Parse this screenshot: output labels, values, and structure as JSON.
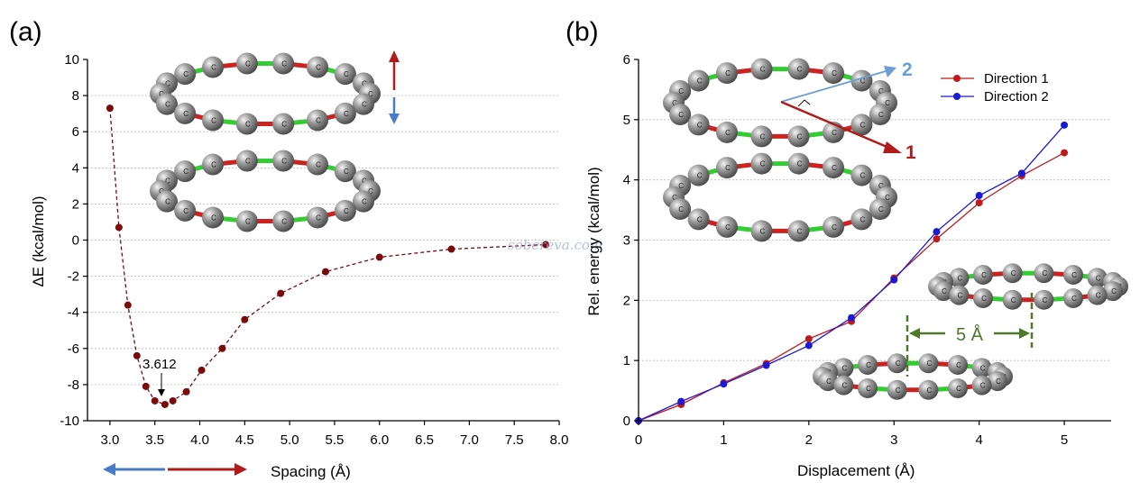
{
  "figure": {
    "watermark": "sobereva.com",
    "scale_label": "5 Å",
    "arrow_label_1": "1",
    "arrow_label_2": "2",
    "atom_label": "C"
  },
  "colors": {
    "panel_a_series": "#7b0a0a",
    "direction_1": "#c0191c",
    "direction_2": "#1a1ad6",
    "arrow_red": "#b01c1c",
    "arrow_blue": "#4a7bc8",
    "arrow_light_blue": "#6a9fd4",
    "scale_green": "#4d7a2a",
    "bond_green": "#33cc33",
    "bond_red": "#cc2222",
    "atom_gray": "#8a8a8a"
  },
  "chart_data": [
    {
      "panel": "(a)",
      "type": "line",
      "xlabel": "Spacing (Å)",
      "ylabel": "ΔE (kcal/mol)",
      "xlim": [
        2.75,
        8.0
      ],
      "ylim": [
        -10,
        10
      ],
      "xticks": [
        3.0,
        3.5,
        4.0,
        4.5,
        5.0,
        5.5,
        6.0,
        6.5,
        7.0,
        7.5,
        8.0
      ],
      "xtick_labels": [
        "3.0",
        "3.5",
        "4.0",
        "4.5",
        "5.0",
        "5.5",
        "6.0",
        "6.5",
        "7.0",
        "7.5",
        "8.0"
      ],
      "yticks": [
        -10,
        -8,
        -6,
        -4,
        -2,
        0,
        2,
        4,
        6,
        8,
        10
      ],
      "ytick_labels": [
        "-10",
        "-8",
        "-6",
        "-4",
        "-2",
        "0",
        "2",
        "4",
        "6",
        "8",
        "10"
      ],
      "grid": "horizontal dotted",
      "line_style": "dashed",
      "annotation": "3.612",
      "annotation_x": 3.612,
      "series": [
        {
          "x": [
            3.0,
            3.1,
            3.2,
            3.3,
            3.4,
            3.5,
            3.612,
            3.7,
            3.85,
            4.02,
            4.25,
            4.5,
            4.9,
            5.4,
            6.0,
            6.8,
            7.85
          ],
          "y": [
            7.3,
            0.7,
            -3.6,
            -6.4,
            -8.1,
            -8.9,
            -9.1,
            -8.9,
            -8.4,
            -7.2,
            -6.0,
            -4.4,
            -2.95,
            -1.75,
            -0.95,
            -0.5,
            -0.25
          ]
        }
      ]
    },
    {
      "panel": "(b)",
      "type": "line",
      "xlabel": "Displacement (Å)",
      "ylabel": "Rel. energy (kcal/mol)",
      "xlim": [
        0,
        5.55
      ],
      "ylim": [
        0,
        6
      ],
      "xticks": [
        0,
        1,
        2,
        3,
        4,
        5
      ],
      "xtick_labels": [
        "0",
        "1",
        "2",
        "3",
        "4",
        "5"
      ],
      "yticks": [
        0,
        1,
        2,
        3,
        4,
        5,
        6
      ],
      "ytick_labels": [
        "0",
        "1",
        "2",
        "3",
        "4",
        "5",
        "6"
      ],
      "grid": "horizontal dotted",
      "legend": "top-right",
      "series": [
        {
          "name": "Direction 1",
          "x": [
            0,
            0.5,
            1.0,
            1.5,
            2.0,
            2.5,
            3.0,
            3.5,
            4.0,
            4.5,
            5.0
          ],
          "y": [
            0,
            0.27,
            0.63,
            0.95,
            1.36,
            1.65,
            2.37,
            3.02,
            3.62,
            4.07,
            4.45
          ]
        },
        {
          "name": "Direction 2",
          "x": [
            0,
            0.5,
            1.0,
            1.5,
            2.0,
            2.5,
            3.0,
            3.5,
            4.0,
            4.5,
            5.0
          ],
          "y": [
            0,
            0.32,
            0.61,
            0.92,
            1.25,
            1.71,
            2.34,
            3.14,
            3.74,
            4.11,
            4.91
          ]
        }
      ]
    }
  ]
}
